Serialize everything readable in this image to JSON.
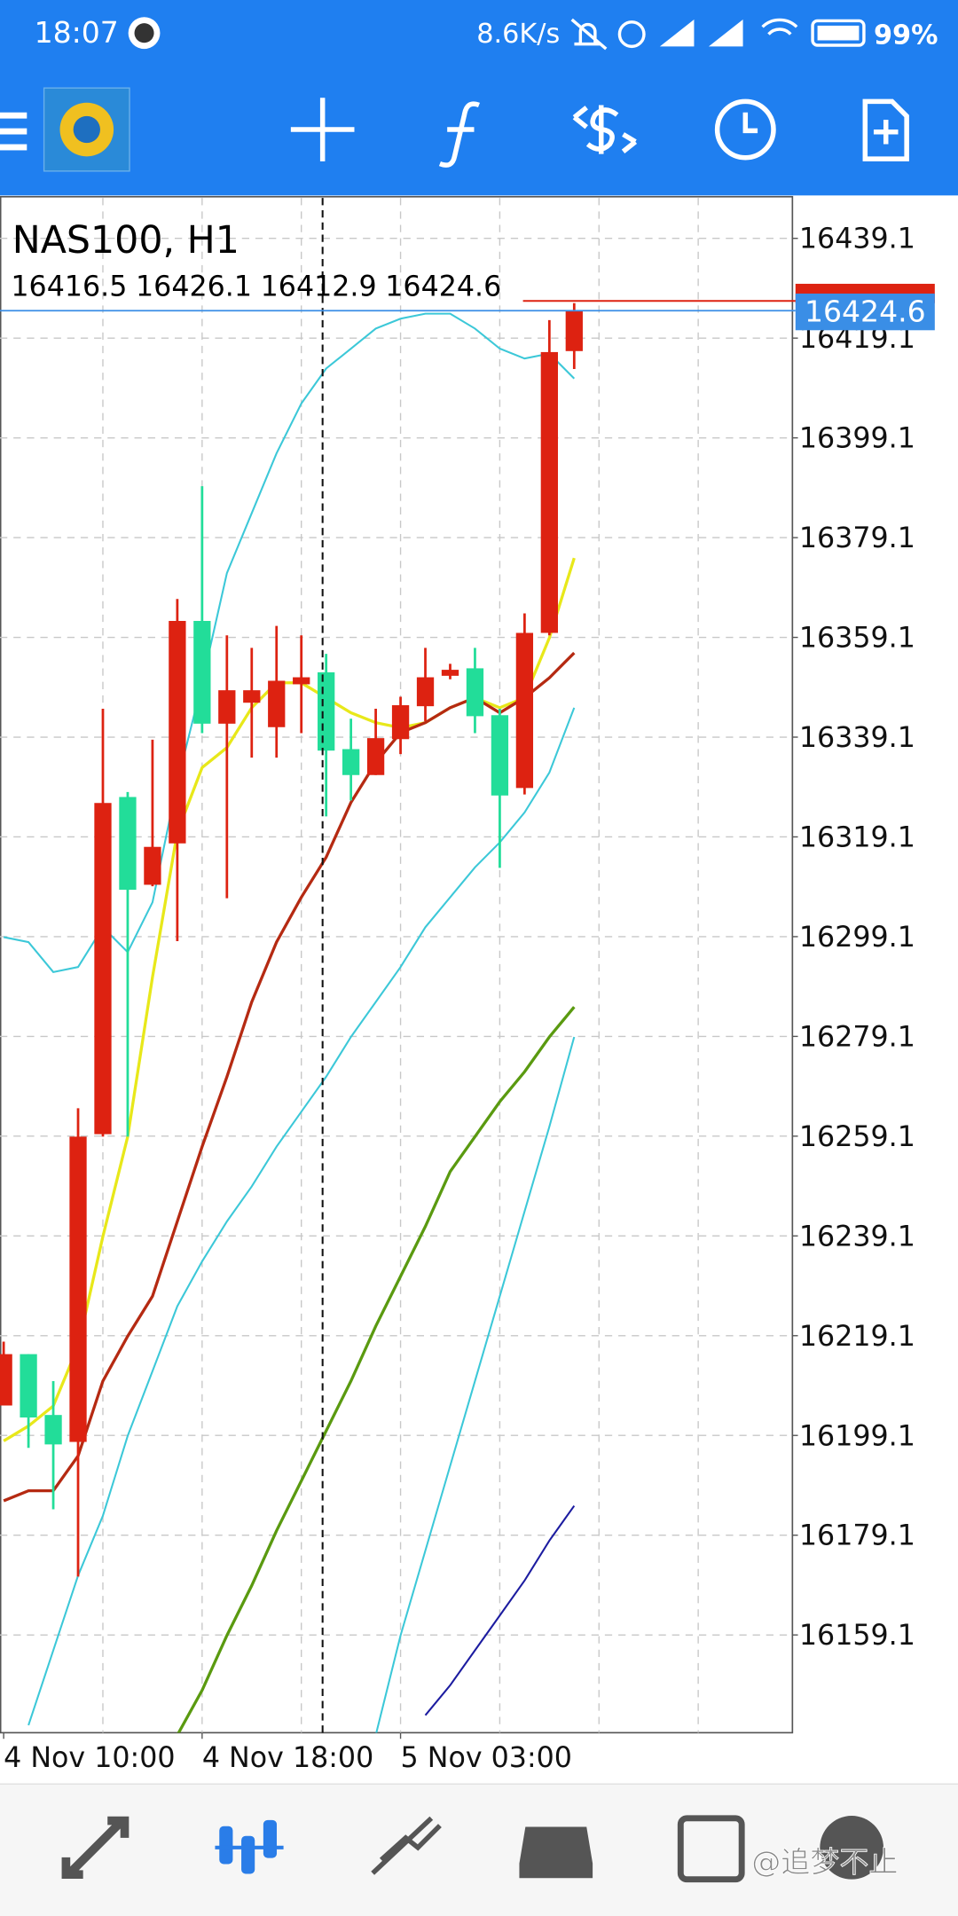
{
  "status_bar": {
    "time": "18:07",
    "network_speed": "8.6K/s",
    "battery": "99%"
  },
  "chart_data": {
    "type": "candlestick",
    "title": "NAS100, H1",
    "categories": [
      "4 Nov 10:00",
      null,
      null,
      null,
      null,
      null,
      null,
      null,
      "4 Nov 18:00",
      null,
      null,
      null,
      null,
      null,
      null,
      null,
      "5 Nov 03:00",
      null,
      null,
      null,
      null,
      null,
      null,
      null
    ],
    "open": [
      16205.1,
      16215.4,
      16203.2,
      16197.8,
      16259.5,
      16327.1,
      16309.5,
      16317.8,
      16362.4,
      16341.8,
      16346.0,
      16341.1,
      16349.7,
      16352.1,
      16336.7,
      16331.5,
      16338.7,
      16345.3,
      16351.4,
      16352.9,
      16343.5,
      16328.9,
      16360.0,
      16416.5
    ],
    "high": [
      16217.9,
      16215.4,
      16210.0,
      16264.7,
      16344.8,
      16328.1,
      16338.6,
      16366.8,
      16389.4,
      16359.5,
      16357.0,
      16361.4,
      16359.5,
      16355.8,
      16342.8,
      16344.8,
      16347.2,
      16357.0,
      16353.8,
      16357.0,
      16344.8,
      16363.9,
      16422.7,
      16426.1
    ],
    "low": [
      16205.1,
      16196.6,
      16184.3,
      16170.8,
      16259.0,
      16259.0,
      16309.2,
      16298.2,
      16339.9,
      16306.8,
      16335.0,
      16335.0,
      16339.9,
      16323.2,
      16326.4,
      16331.5,
      16335.7,
      16342.3,
      16350.7,
      16339.9,
      16312.9,
      16327.6,
      16359.5,
      16412.9
    ],
    "close": [
      16215.4,
      16202.7,
      16197.3,
      16259.0,
      16325.9,
      16308.5,
      16317.1,
      16362.4,
      16341.8,
      16348.5,
      16348.5,
      16350.4,
      16351.1,
      16336.4,
      16331.5,
      16338.9,
      16345.5,
      16351.1,
      16352.6,
      16343.3,
      16327.4,
      16360.0,
      16416.3,
      16424.6
    ],
    "up_color": "#dd2211",
    "down_color": "#22dd99",
    "series": [
      {
        "color": "#e8e81a",
        "values": [
          16198,
          16201,
          16205,
          16217,
          16239,
          16259,
          16291,
          16320,
          16333,
          16337,
          16345,
          16350,
          16350,
          16347,
          16344,
          16342,
          16341,
          16342,
          16345,
          16347,
          16345,
          16347,
          16359,
          16375
        ]
      },
      {
        "color": "#b52a12",
        "values": [
          16186,
          16188,
          16188,
          16195,
          16210,
          16219,
          16227,
          16242,
          16257,
          16271,
          16286,
          16298,
          16307,
          16315,
          16326,
          16334,
          16340,
          16342,
          16345,
          16347,
          16344,
          16347,
          16351,
          16356
        ]
      },
      {
        "color": "#3cc8d8",
        "values": [
          16299,
          16298,
          16292,
          16293,
          16301,
          16296,
          16306,
          16330,
          16350,
          16372,
          16384,
          16396,
          16406,
          16413,
          16417,
          16421,
          16423,
          16424,
          16424,
          16421,
          16417,
          16415,
          16416,
          16411
        ]
      },
      {
        "color": "#3cc8d8",
        "values": [
          null,
          16141,
          16156,
          16171,
          16183,
          16199,
          16212,
          16225,
          16234,
          16242,
          16249,
          16257,
          16264,
          16271,
          16279,
          16286,
          16293,
          16301,
          16307,
          16313,
          16318,
          16324,
          16332,
          16345
        ]
      },
      {
        "color": "#3cc8d8",
        "values": [
          null,
          null,
          null,
          null,
          null,
          null,
          null,
          null,
          null,
          null,
          null,
          null,
          null,
          null,
          null,
          16139,
          16159,
          16176,
          16193,
          16210,
          16227,
          16244,
          16261,
          16279
        ]
      },
      {
        "color": "#5a9a10",
        "values": [
          null,
          null,
          null,
          null,
          null,
          null,
          null,
          16139,
          16148,
          16159,
          16169,
          16180,
          16190,
          16200,
          16210,
          16221,
          16231,
          16241,
          16252,
          16259,
          16266,
          16272,
          16279,
          16285
        ]
      },
      {
        "color": "#1c1ca0",
        "values": [
          null,
          null,
          null,
          null,
          null,
          null,
          null,
          null,
          null,
          null,
          null,
          null,
          null,
          null,
          null,
          null,
          null,
          16143,
          16149,
          16156,
          16163,
          16170,
          16178,
          16185
        ]
      }
    ],
    "bid_color": "#3a8ee6",
    "ylim": [
      16139.5,
      16447.2
    ],
    "yticks": [
      16439.1,
      16419.1,
      16399.1,
      16379.1,
      16359.1,
      16339.1,
      16319.1,
      16299.1,
      16279.1,
      16259.1,
      16239.1,
      16219.1,
      16199.1,
      16179.1,
      16159.1
    ],
    "grid": true
  },
  "watermark": "@追梦不止"
}
